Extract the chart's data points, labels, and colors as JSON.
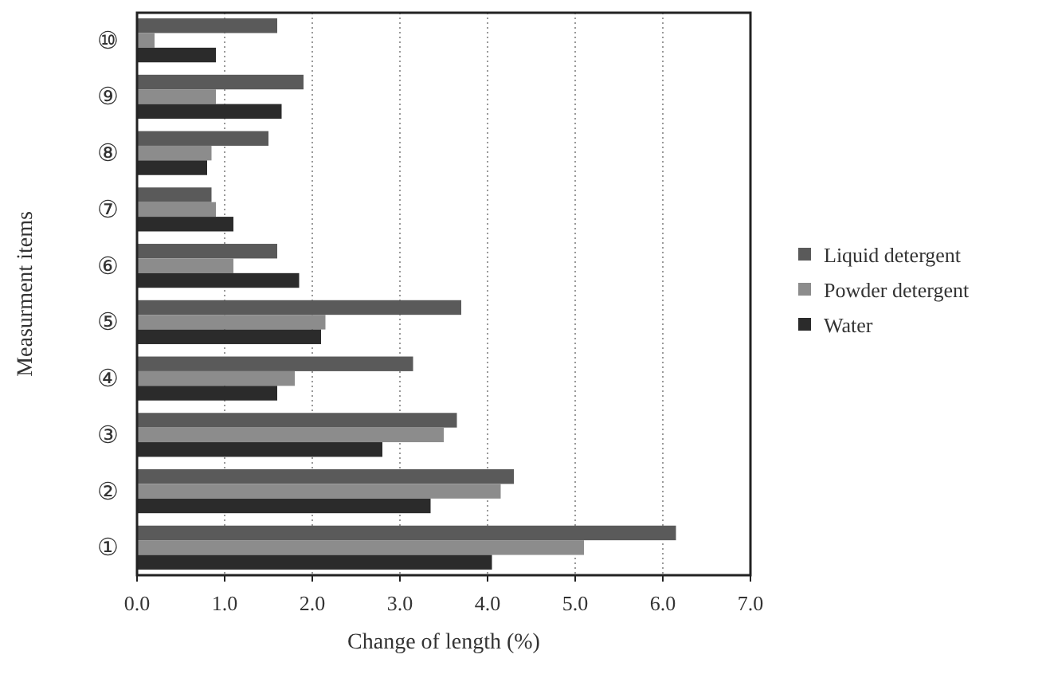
{
  "chart_data": {
    "type": "bar",
    "orientation": "horizontal",
    "xlabel": "Change of length (%)",
    "ylabel": "Measurment items",
    "categories": [
      "⑩",
      "⑨",
      "⑧",
      "⑦",
      "⑥",
      "⑤",
      "④",
      "③",
      "②",
      "①"
    ],
    "series": [
      {
        "name": "Liquid detergent",
        "color": "#5a5a5a",
        "values": [
          1.6,
          1.9,
          1.5,
          0.85,
          1.6,
          3.7,
          3.15,
          3.65,
          4.3,
          6.15
        ]
      },
      {
        "name": "Powder detergent",
        "color": "#8c8c8c",
        "values": [
          0.2,
          0.9,
          0.85,
          0.9,
          1.1,
          2.15,
          1.8,
          3.5,
          4.15,
          5.1
        ]
      },
      {
        "name": "Water",
        "color": "#2b2b2b",
        "values": [
          0.9,
          1.65,
          0.8,
          1.1,
          1.85,
          2.1,
          1.6,
          2.8,
          3.35,
          4.05
        ]
      }
    ],
    "xlim": [
      0,
      7
    ],
    "xticks": [
      {
        "value": 0,
        "label": "0.0"
      },
      {
        "value": 1,
        "label": "1.0"
      },
      {
        "value": 2,
        "label": "2.0"
      },
      {
        "value": 3,
        "label": "3.0"
      },
      {
        "value": 4,
        "label": "4.0"
      },
      {
        "value": 5,
        "label": "5.0"
      },
      {
        "value": 6,
        "label": "6.0"
      },
      {
        "value": 7,
        "label": "7.0"
      }
    ],
    "grid": "x",
    "legend": "right"
  }
}
